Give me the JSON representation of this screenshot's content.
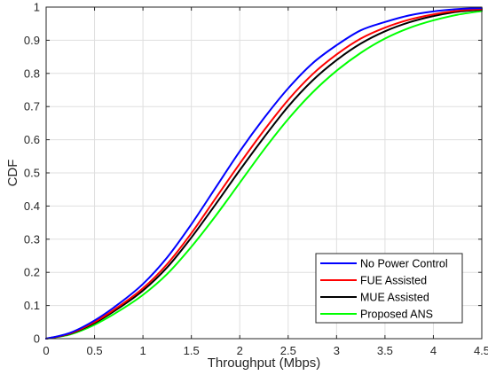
{
  "chart_data": {
    "type": "line",
    "xlabel": "Throughput (Mbps)",
    "ylabel": "CDF",
    "xlim": [
      0,
      4.5
    ],
    "ylim": [
      0,
      1
    ],
    "xticks": [
      0,
      0.5,
      1,
      1.5,
      2,
      2.5,
      3,
      3.5,
      4,
      4.5
    ],
    "yticks": [
      0,
      0.1,
      0.2,
      0.3,
      0.4,
      0.5,
      0.6,
      0.7,
      0.8,
      0.9,
      1
    ],
    "xtick_labels": [
      "0",
      "0.5",
      "1",
      "1.5",
      "2",
      "2.5",
      "3",
      "3.5",
      "4",
      "4.5"
    ],
    "ytick_labels": [
      "0",
      "0.1",
      "0.2",
      "0.3",
      "0.4",
      "0.5",
      "0.6",
      "0.7",
      "0.8",
      "0.9",
      "1"
    ],
    "grid": true,
    "legend_position": "bottom-right",
    "x": [
      0,
      0.25,
      0.5,
      0.75,
      1,
      1.25,
      1.5,
      1.75,
      2,
      2.25,
      2.5,
      2.75,
      3,
      3.25,
      3.5,
      3.75,
      4,
      4.25,
      4.5
    ],
    "series": [
      {
        "name": "No Power Control",
        "color": "#0000ff",
        "values": [
          0,
          0.018,
          0.055,
          0.105,
          0.165,
          0.245,
          0.345,
          0.455,
          0.565,
          0.665,
          0.755,
          0.83,
          0.885,
          0.93,
          0.955,
          0.975,
          0.987,
          0.994,
          0.997
        ]
      },
      {
        "name": "FUE Assisted",
        "color": "#ff0000",
        "values": [
          0,
          0.016,
          0.05,
          0.097,
          0.152,
          0.225,
          0.318,
          0.423,
          0.528,
          0.628,
          0.72,
          0.797,
          0.857,
          0.905,
          0.938,
          0.962,
          0.978,
          0.989,
          0.994
        ]
      },
      {
        "name": "MUE Assisted",
        "color": "#000000",
        "values": [
          0,
          0.015,
          0.047,
          0.092,
          0.145,
          0.215,
          0.305,
          0.405,
          0.508,
          0.607,
          0.7,
          0.778,
          0.84,
          0.89,
          0.927,
          0.954,
          0.973,
          0.986,
          0.992
        ]
      },
      {
        "name": "Proposed ANS",
        "color": "#00ff00",
        "values": [
          0,
          0.013,
          0.042,
          0.083,
          0.132,
          0.195,
          0.277,
          0.37,
          0.47,
          0.57,
          0.662,
          0.742,
          0.808,
          0.862,
          0.905,
          0.937,
          0.96,
          0.977,
          0.988
        ]
      }
    ]
  }
}
